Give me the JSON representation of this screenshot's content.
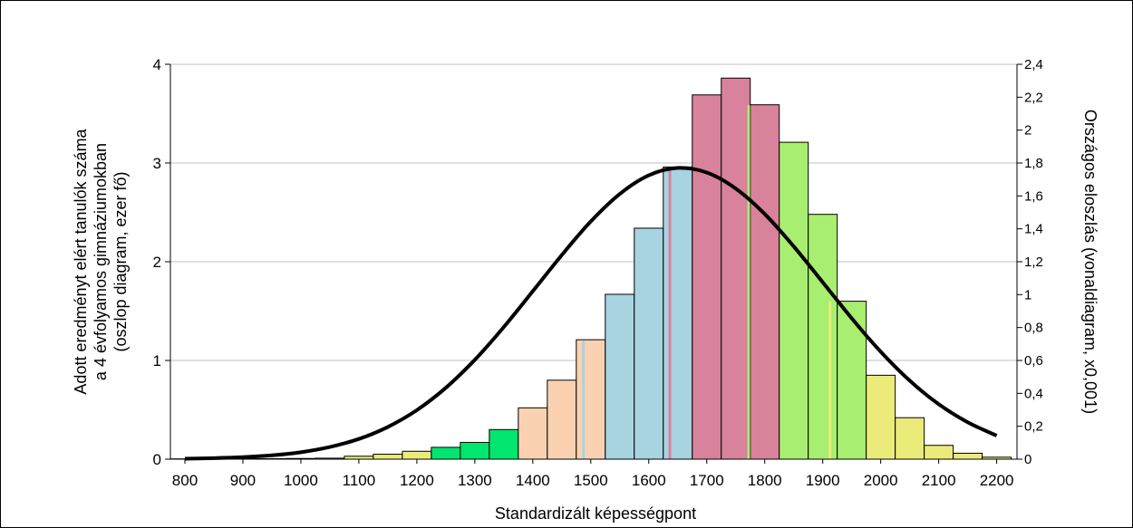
{
  "chart_data": {
    "type": "bar",
    "xlabel": "Standardizált képességpont",
    "ylabel_left": [
      "Adott eredményt elért tanulók száma",
      "a 4 évfolyamos gimnáziumokban",
      "(oszlop diagram, ezer fő)"
    ],
    "ylabel_right": "Országos eloszlás (vonaldiagram, x0,001)",
    "xlim": [
      775,
      2235
    ],
    "ylim_left": [
      0,
      4
    ],
    "ylim_right": [
      0,
      2.4
    ],
    "grid": true,
    "x_ticks": [
      "800",
      "900",
      "1000",
      "1100",
      "1200",
      "1300",
      "1400",
      "1500",
      "1600",
      "1700",
      "1800",
      "1900",
      "2000",
      "2100",
      "2200"
    ],
    "y_ticks_left": [
      "0",
      "1",
      "2",
      "3",
      "4"
    ],
    "y_ticks_right": [
      "0",
      "0,2",
      "0,4",
      "0,6",
      "0,8",
      "1",
      "1,2",
      "1,4",
      "1,6",
      "1,8",
      "2",
      "2,2",
      "2,4"
    ],
    "bar_width": 50,
    "bars": [
      {
        "x": 800,
        "value": 0.003,
        "color": "#ebeb7a"
      },
      {
        "x": 850,
        "value": 0.003,
        "color": "#ebeb7a"
      },
      {
        "x": 900,
        "value": 0.005,
        "color": "#ebeb7a"
      },
      {
        "x": 950,
        "value": 0.005,
        "color": "#ebeb7a"
      },
      {
        "x": 1000,
        "value": 0.007,
        "color": "#ebeb7a"
      },
      {
        "x": 1050,
        "value": 0.01,
        "color": "#ebeb7a"
      },
      {
        "x": 1100,
        "value": 0.03,
        "color": "#ebeb7a"
      },
      {
        "x": 1150,
        "value": 0.05,
        "color": "#ebeb7a"
      },
      {
        "x": 1200,
        "value": 0.08,
        "color": "#ebeb7a"
      },
      {
        "x": 1250,
        "value": 0.12,
        "color": "#00e66e"
      },
      {
        "x": 1300,
        "value": 0.17,
        "color": "#00e66e"
      },
      {
        "x": 1350,
        "value": 0.3,
        "color": "#00e66e"
      },
      {
        "x": 1400,
        "value": 0.52,
        "color": "#fad2b1"
      },
      {
        "x": 1450,
        "value": 0.8,
        "color": "#fad2b1"
      },
      {
        "x": 1500,
        "value": 1.21,
        "color": "#fad2b1"
      },
      {
        "x": 1550,
        "value": 1.67,
        "color": "#a8d3e1"
      },
      {
        "x": 1600,
        "value": 2.34,
        "color": "#a8d3e1"
      },
      {
        "x": 1650,
        "value": 2.96,
        "color": "#a8d3e1"
      },
      {
        "x": 1700,
        "value": 3.69,
        "color": "#d9829b"
      },
      {
        "x": 1750,
        "value": 3.86,
        "color": "#d9829b"
      },
      {
        "x": 1800,
        "value": 3.59,
        "color": "#d9829b"
      },
      {
        "x": 1850,
        "value": 3.21,
        "color": "#a8ee70"
      },
      {
        "x": 1900,
        "value": 2.48,
        "color": "#a8ee70"
      },
      {
        "x": 1950,
        "value": 1.6,
        "color": "#a8ee70"
      },
      {
        "x": 2000,
        "value": 0.85,
        "color": "#ebeb7a"
      },
      {
        "x": 2050,
        "value": 0.42,
        "color": "#ebeb7a"
      },
      {
        "x": 2100,
        "value": 0.14,
        "color": "#ebeb7a"
      },
      {
        "x": 2150,
        "value": 0.06,
        "color": "#ebeb7a"
      },
      {
        "x": 2200,
        "value": 0.02,
        "color": "#ebeb7a"
      }
    ],
    "color_splits": [
      {
        "x": 1236,
        "value": 0.12,
        "left": "#ebeb7a",
        "right": "#00e66e"
      },
      {
        "x": 1485,
        "value": 1.21,
        "left": "#fad2b1",
        "right": "#a8d3e1"
      },
      {
        "x": 1634,
        "value": 2.96,
        "left": "#a8d3e1",
        "right": "#d9829b"
      },
      {
        "x": 1770,
        "value": 3.59,
        "left": "#d9829b",
        "right": "#a8ee70"
      },
      {
        "x": 1910,
        "value": 1.6,
        "left": "#a8ee70",
        "right": "#ebeb7a"
      }
    ],
    "line_series": {
      "color": "#000000",
      "x": [
        800,
        850,
        900,
        950,
        1000,
        1050,
        1100,
        1150,
        1200,
        1250,
        1300,
        1350,
        1400,
        1450,
        1500,
        1550,
        1600,
        1650,
        1700,
        1750,
        1800,
        1850,
        1900,
        1950,
        2000,
        2050,
        2100,
        2150,
        2200
      ],
      "y": [
        0.003,
        0.006,
        0.012,
        0.023,
        0.042,
        0.074,
        0.123,
        0.196,
        0.298,
        0.434,
        0.604,
        0.803,
        1.021,
        1.241,
        1.445,
        1.612,
        1.725,
        1.77,
        1.742,
        1.645,
        1.49,
        1.293,
        1.075,
        0.856,
        0.653,
        0.477,
        0.334,
        0.224,
        0.143
      ]
    }
  }
}
